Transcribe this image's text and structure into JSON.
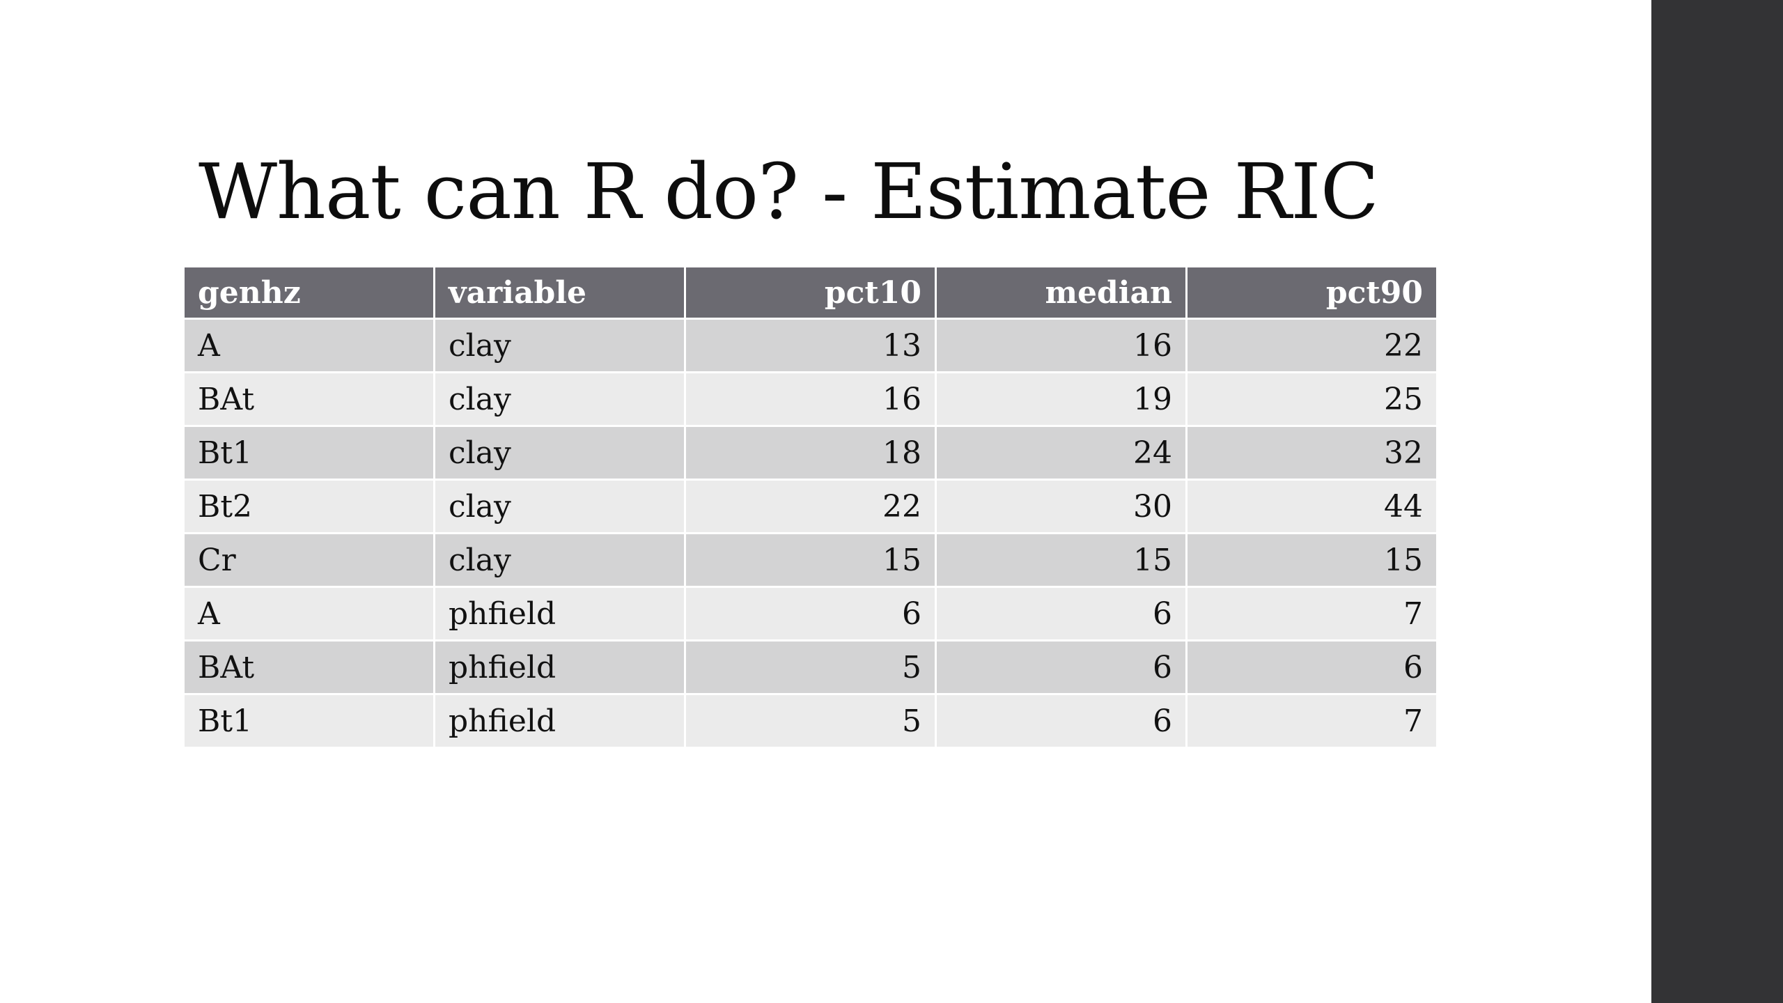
{
  "slide": {
    "title": "What can R do? - Estimate RIC",
    "sidebar_color": "#333335"
  },
  "table": {
    "columns": [
      "genhz",
      "variable",
      "pct10",
      "median",
      "pct90"
    ],
    "rows": [
      [
        "A",
        "clay",
        "13",
        "16",
        "22"
      ],
      [
        "BAt",
        "clay",
        "16",
        "19",
        "25"
      ],
      [
        "Bt1",
        "clay",
        "18",
        "24",
        "32"
      ],
      [
        "Bt2",
        "clay",
        "22",
        "30",
        "44"
      ],
      [
        "Cr",
        "clay",
        "15",
        "15",
        "15"
      ],
      [
        "A",
        "phfield",
        "6",
        "6",
        "7"
      ],
      [
        "BAt",
        "phfield",
        "5",
        "6",
        "6"
      ],
      [
        "Bt1",
        "phfield",
        "5",
        "6",
        "7"
      ]
    ],
    "header_color": "#6b6a71",
    "row_color_odd": "#d3d3d4",
    "row_color_even": "#ebebeb"
  }
}
